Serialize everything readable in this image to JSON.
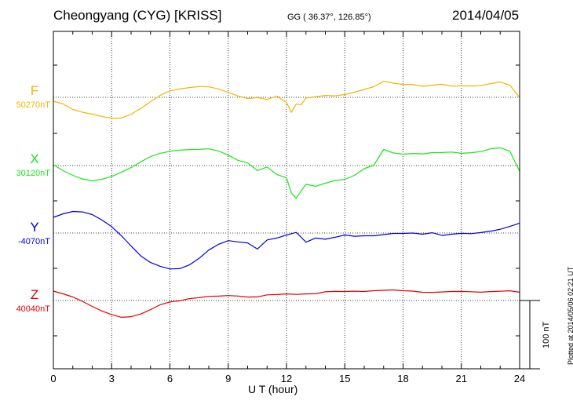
{
  "header": {
    "station": "Cheongyang (CYG)  [KRISS]",
    "coords": "GG ( 36.37°, 126.85°)",
    "date": "2014/04/05"
  },
  "footer": {
    "plotted": "Plotted at 2014/05/06 02:21  UT"
  },
  "chart_data": {
    "type": "line",
    "xlabel": "U T (hour)",
    "x_ticks": [
      "0",
      "3",
      "6",
      "9",
      "12",
      "15",
      "18",
      "21",
      "24"
    ],
    "xlim": [
      0,
      24
    ],
    "grid": true,
    "scale_bar": "100 nT",
    "series": [
      {
        "name": "F",
        "baseline": "50270nT",
        "color": "#f5b400",
        "x": [
          0,
          0.5,
          1,
          1.5,
          2,
          2.5,
          3,
          3.5,
          4,
          4.5,
          5,
          5.5,
          6,
          6.5,
          7,
          7.5,
          8,
          8.5,
          9,
          9.5,
          10,
          10.5,
          11,
          11.5,
          12,
          12.25,
          12.5,
          12.75,
          13,
          13.5,
          14,
          14.5,
          15,
          15.5,
          16,
          16.5,
          17,
          17.5,
          18,
          18.5,
          19,
          19.5,
          20,
          20.5,
          21,
          21.5,
          22,
          22.5,
          23,
          23.5,
          24
        ],
        "values": [
          -5,
          -8,
          -15,
          -19,
          -22,
          -25,
          -27,
          -26,
          -21,
          -14,
          -6,
          2,
          8,
          11,
          13,
          14,
          13,
          10,
          6,
          2,
          -1,
          0,
          -3,
          1,
          -7,
          -19,
          -8,
          -9,
          -1,
          0,
          2,
          2,
          4,
          7,
          10,
          13,
          20,
          18,
          17,
          17,
          14,
          15,
          16,
          14,
          15,
          15,
          15,
          17,
          19,
          15,
          0
        ]
      },
      {
        "name": "X",
        "baseline": "30120nT",
        "color": "#19e619",
        "x": [
          0,
          0.5,
          1,
          1.5,
          2,
          2.5,
          3,
          3.5,
          4,
          4.5,
          5,
          5.5,
          6,
          6.5,
          7,
          7.5,
          8,
          8.5,
          9,
          9.5,
          10,
          10.5,
          11,
          11.5,
          12,
          12.25,
          12.5,
          12.75,
          13,
          13.5,
          14,
          14.5,
          15,
          15.5,
          16,
          16.5,
          17,
          17.5,
          18,
          18.5,
          19,
          19.5,
          20,
          20.5,
          21,
          21.5,
          22,
          22.5,
          23,
          23.5,
          24
        ],
        "values": [
          1,
          -6,
          -12,
          -17,
          -20,
          -18,
          -14,
          -8,
          -2,
          5,
          11,
          15,
          18,
          20,
          21,
          21,
          21,
          18,
          13,
          7,
          4,
          -6,
          -2,
          -12,
          -16,
          -35,
          -41,
          -32,
          -24,
          -27,
          -23,
          -19,
          -17,
          -12,
          -4,
          0,
          20,
          16,
          15,
          16,
          15,
          16,
          16,
          17,
          16,
          17,
          18,
          21,
          22,
          18,
          -7
        ]
      },
      {
        "name": "Y",
        "baseline": "-4070nT",
        "color": "#0000e0",
        "x": [
          0,
          0.5,
          1,
          1.5,
          2,
          2.5,
          3,
          3.5,
          4,
          4.5,
          5,
          5.5,
          6,
          6.5,
          7,
          7.5,
          8,
          8.5,
          9,
          9.5,
          10,
          10.5,
          11,
          11.5,
          12,
          12.5,
          13,
          13.5,
          14,
          14.5,
          15,
          15.5,
          16,
          16.5,
          17,
          17.5,
          18,
          18.5,
          19,
          19.5,
          20,
          20.5,
          21,
          21.5,
          22,
          22.5,
          23,
          23.5,
          24
        ],
        "values": [
          20,
          25,
          28,
          27,
          23,
          16,
          8,
          -3,
          -16,
          -29,
          -38,
          -43,
          -46,
          -45,
          -40,
          -32,
          -22,
          -15,
          -10,
          -11,
          -12,
          -20,
          -9,
          -7,
          -3,
          1,
          -11,
          -6,
          -8,
          -6,
          -3,
          -4,
          -3,
          -3,
          -2,
          -1,
          -1,
          0,
          -1,
          1,
          -3,
          -2,
          -1,
          -1,
          1,
          3,
          5,
          8,
          12
        ]
      },
      {
        "name": "Z",
        "baseline": "40040nT",
        "color": "#e00000",
        "x": [
          0,
          0.5,
          1,
          1.5,
          2,
          2.5,
          3,
          3.5,
          4,
          4.5,
          5,
          5.5,
          6,
          6.5,
          7,
          7.5,
          8,
          8.5,
          9,
          9.5,
          10,
          10.5,
          11,
          11.5,
          12,
          12.5,
          13,
          13.5,
          14,
          14.5,
          15,
          15.5,
          16,
          16.5,
          17,
          17.5,
          18,
          18.5,
          19,
          19.5,
          20,
          20.5,
          21,
          21.5,
          22,
          22.5,
          23,
          23.5,
          24
        ],
        "values": [
          12,
          9,
          5,
          -1,
          -8,
          -14,
          -18,
          -21,
          -20,
          -17,
          -12,
          -6,
          -2,
          0,
          3,
          4,
          5,
          5,
          6,
          6,
          5,
          5,
          7,
          7,
          8,
          8,
          9,
          9,
          11,
          11,
          11,
          12,
          12,
          13,
          13,
          13,
          12,
          12,
          11,
          11,
          11,
          11,
          11,
          11,
          11,
          12,
          12,
          12,
          10
        ]
      }
    ]
  }
}
